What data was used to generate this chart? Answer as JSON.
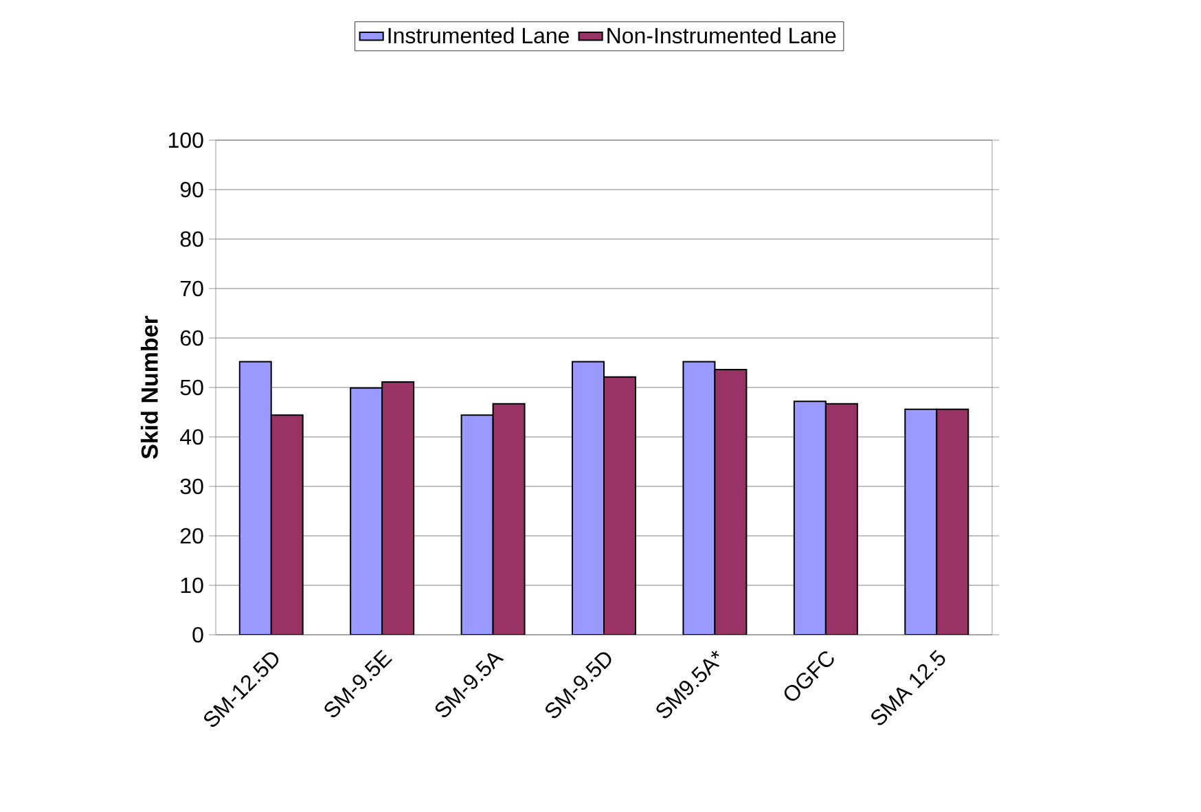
{
  "chart_data": {
    "type": "bar",
    "ylabel": "**Skid Number**",
    "categories": [
      "SM-12.5D",
      "SM-9.5E",
      "SM-9.5A",
      "SM-9.5D",
      "SM9.5A*",
      "OGFC",
      "SMA 12.5"
    ],
    "series": [
      {
        "name": "Instrumented Lane",
        "color": "#9999ff",
        "values": [
          55.2,
          49.9,
          44.4,
          55.2,
          55.2,
          47.2,
          45.6
        ]
      },
      {
        "name": "Non-Instrumented Lane",
        "color": "#993366",
        "values": [
          44.4,
          51.1,
          46.7,
          52.1,
          53.6,
          46.7,
          45.6
        ]
      }
    ],
    "ylim": [
      0,
      100
    ],
    "yticks": [
      0,
      10,
      20,
      30,
      40,
      50,
      60,
      70,
      80,
      90,
      100
    ],
    "grid": "y",
    "legend": "top"
  }
}
